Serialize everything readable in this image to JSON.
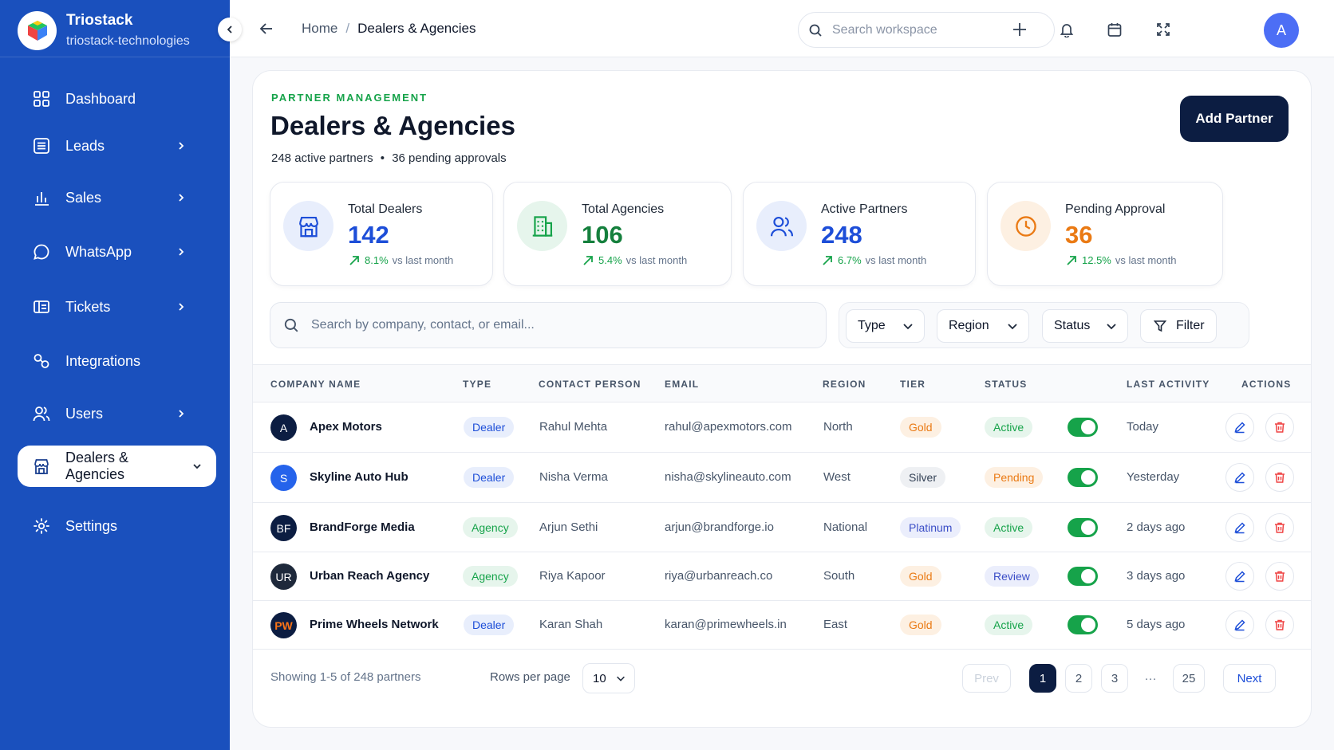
{
  "brand": {
    "name": "Triostack",
    "workspace": "triostack-technologies"
  },
  "sidebar": {
    "items": [
      {
        "label": "Dashboard",
        "icon": "grid-icon"
      },
      {
        "label": "Leads",
        "icon": "list-icon"
      },
      {
        "label": "Sales",
        "icon": "bar-chart-icon"
      },
      {
        "label": "WhatsApp",
        "icon": "chat-icon"
      },
      {
        "label": "Tickets",
        "icon": "ticket-icon"
      },
      {
        "label": "Integrations",
        "icon": "link-icon"
      },
      {
        "label": "Users",
        "icon": "users-icon"
      },
      {
        "label": "Dealers & Agencies",
        "icon": "store-icon",
        "active": true
      },
      {
        "label": "Settings",
        "icon": "gear-icon"
      }
    ]
  },
  "topbar": {
    "breadcrumb": {
      "home": "Home",
      "separator": "/",
      "current": "Dealers & Agencies"
    },
    "search_placeholder": "Search workspace",
    "avatar_initial": "A"
  },
  "page": {
    "eyebrow": "PARTNER MANAGEMENT",
    "title": "Dealers & Agencies",
    "subtitle_active": "248 active partners",
    "subtitle_bullet": "•",
    "subtitle_pending": "36 pending approvals",
    "add_button": "Add Partner"
  },
  "stats": [
    {
      "label": "Total Dealers",
      "value": "142",
      "trend": "8.1%",
      "vs": "vs last month",
      "color": "#1d4ed8"
    },
    {
      "label": "Total Agencies",
      "value": "106",
      "trend": "5.4%",
      "vs": "vs last month",
      "color": "#15803d"
    },
    {
      "label": "Active Partners",
      "value": "248",
      "trend": "6.7%",
      "vs": "vs last month",
      "color": "#1d4ed8"
    },
    {
      "label": "Pending Approval",
      "value": "36",
      "trend": "12.5%",
      "vs": "vs last month",
      "color": "#ea7a14"
    }
  ],
  "filters": {
    "search_placeholder": "Search by company, contact, or email...",
    "type": "Type",
    "region": "Region",
    "status": "Status",
    "filter_button": "Filter"
  },
  "table": {
    "headers": {
      "company": "COMPANY NAME",
      "type": "TYPE",
      "contact": "CONTACT PERSON",
      "email": "EMAIL",
      "region": "REGION",
      "tier": "TIER",
      "status": "STATUS",
      "last_activity": "LAST ACTIVITY",
      "actions": "ACTIONS"
    },
    "rows": [
      {
        "initials": "A",
        "company": "Apex Motors",
        "type": "Dealer",
        "contact": "Rahul Mehta",
        "email": "rahul@apexmotors.com",
        "region": "North",
        "tier": "Gold",
        "status": "Active",
        "enabled": true,
        "last_activity": "Today",
        "logo_color": "#0c1d42"
      },
      {
        "initials": "S",
        "company": "Skyline Auto Hub",
        "type": "Dealer",
        "contact": "Nisha Verma",
        "email": "nisha@skylineauto.com",
        "region": "West",
        "tier": "Silver",
        "status": "Pending",
        "enabled": true,
        "last_activity": "Yesterday",
        "logo_color": "#2563eb"
      },
      {
        "initials": "BF",
        "company": "BrandForge Media",
        "type": "Agency",
        "contact": "Arjun Sethi",
        "email": "arjun@brandforge.io",
        "region": "National",
        "tier": "Platinum",
        "status": "Active",
        "enabled": true,
        "last_activity": "2 days ago",
        "logo_color": "#0c1d42"
      },
      {
        "initials": "UR",
        "company": "Urban Reach Agency",
        "type": "Agency",
        "contact": "Riya Kapoor",
        "email": "riya@urbanreach.co",
        "region": "South",
        "tier": "Gold",
        "status": "Review",
        "enabled": true,
        "last_activity": "3 days ago",
        "logo_color": "#1e293b"
      },
      {
        "initials": "PW",
        "company": "Prime Wheels Network",
        "type": "Dealer",
        "contact": "Karan Shah",
        "email": "karan@primewheels.in",
        "region": "East",
        "tier": "Gold",
        "status": "Active",
        "enabled": true,
        "last_activity": "5 days ago",
        "logo_color": "#0c1d42"
      }
    ]
  },
  "pagination": {
    "showing": "Showing 1-5 of 248 partners",
    "rows_per_page_label": "Rows per page",
    "rows_per_page": "10",
    "prev": "Prev",
    "pages": [
      "1",
      "2",
      "3"
    ],
    "ellipsis": "···",
    "last_page": "25",
    "next": "Next",
    "current": "1"
  }
}
